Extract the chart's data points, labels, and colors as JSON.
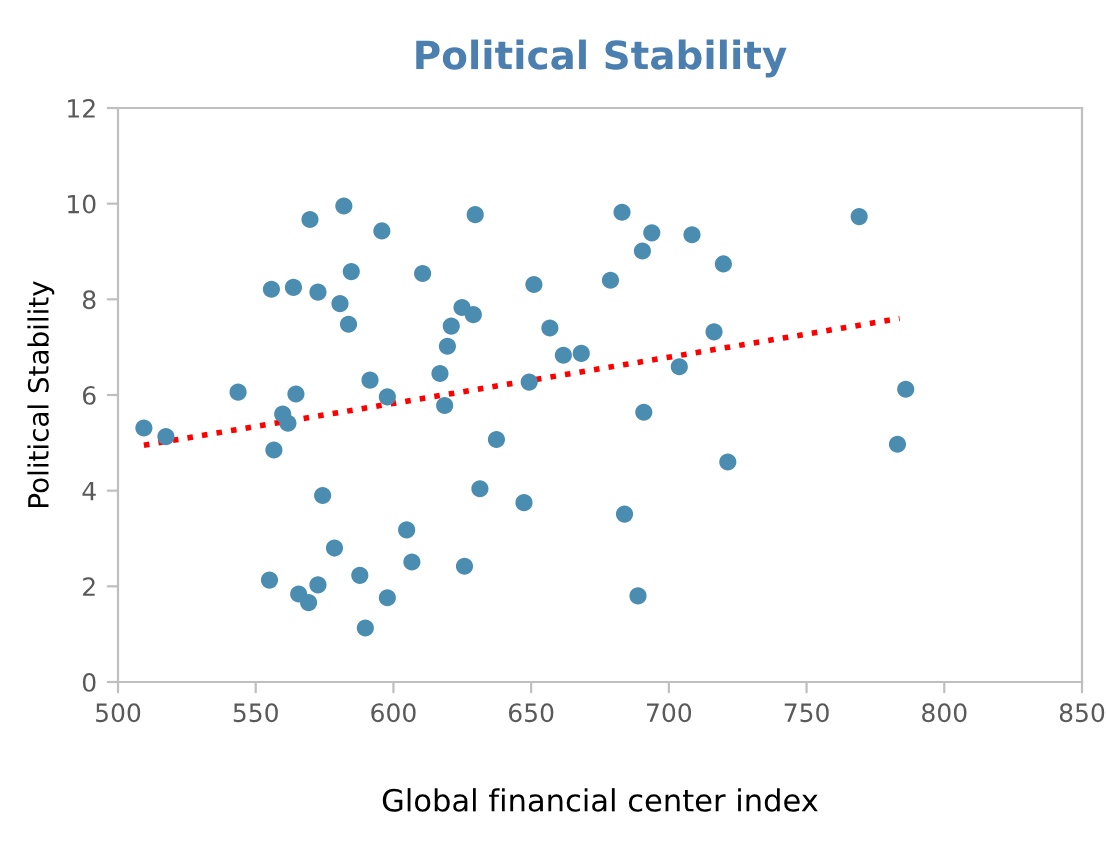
{
  "chart_data": {
    "type": "scatter",
    "title": "Political Stability",
    "xlabel": "Global financial center index",
    "ylabel": "Political Stability",
    "xlim": [
      500,
      850
    ],
    "xticks": [
      500,
      550,
      600,
      650,
      700,
      750,
      800,
      850
    ],
    "ylim": [
      0,
      12
    ],
    "yticks": [
      0,
      2,
      4,
      6,
      8,
      10,
      12
    ],
    "grid": false,
    "legend": false,
    "marker": "circle",
    "series": [
      {
        "color": "#4a8db0",
        "x": [
          509.4,
          517.4,
          543.6,
          555.7,
          563.7,
          572.6,
          569.7,
          582,
          595.8,
          584.7,
          580.6,
          583.7,
          610.6,
          624.9,
          629,
          621,
          619.6,
          616.9,
          591.5,
          597.8,
          618.6,
          564.6,
          559.8,
          561.7,
          556.6,
          637.4,
          574.3,
          631.4,
          604.8,
          578.6,
          606.7,
          625.8,
          555,
          587.8,
          572.6,
          565.6,
          569.2,
          597.8,
          589.8,
          629.7,
          683,
          693.8,
          690.4,
          708.4,
          719.8,
          651,
          678.8,
          656.8,
          661.7,
          668.2,
          716.4,
          703.8,
          649.3,
          690.9,
          721.4,
          647.4,
          683.9,
          688.8,
          769.1,
          786,
          783
        ],
        "values": [
          5.31,
          5.13,
          6.06,
          8.21,
          8.25,
          8.15,
          9.67,
          9.95,
          9.43,
          8.58,
          7.91,
          7.48,
          8.54,
          7.83,
          7.68,
          7.44,
          7.02,
          6.45,
          6.31,
          5.96,
          5.78,
          6.02,
          5.6,
          5.41,
          4.85,
          5.07,
          3.9,
          4.04,
          3.18,
          2.8,
          2.51,
          2.42,
          2.13,
          2.23,
          2.03,
          1.84,
          1.66,
          1.76,
          1.13,
          9.77,
          9.82,
          9.39,
          9.01,
          9.35,
          8.74,
          8.31,
          8.4,
          7.4,
          6.83,
          6.87,
          7.32,
          6.59,
          6.27,
          5.64,
          4.6,
          3.75,
          3.51,
          1.8,
          9.73,
          6.12,
          4.97
        ]
      },
      {
        "type": "line",
        "color": "#ff0000",
        "line_style": "dotted",
        "marker": "none",
        "x": [
          509.4,
          783.8
        ],
        "values": [
          4.95,
          7.6
        ]
      }
    ]
  }
}
